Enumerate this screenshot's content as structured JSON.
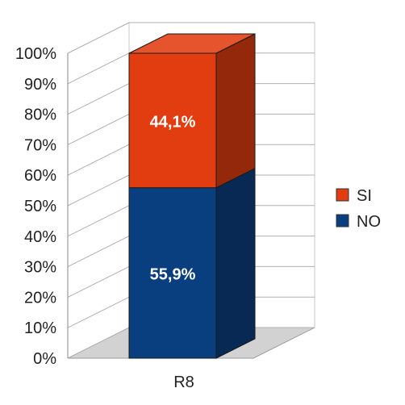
{
  "chart_data": {
    "type": "bar",
    "stacked": true,
    "three_d": true,
    "categories": [
      "R8"
    ],
    "series": [
      {
        "name": "NO",
        "values": [
          55.9
        ],
        "color": "#0a3f7f",
        "label": "55,9%"
      },
      {
        "name": "SI",
        "values": [
          44.1
        ],
        "color": "#e23d10",
        "label": "44,1%"
      }
    ],
    "y_ticks": [
      "0%",
      "10%",
      "20%",
      "30%",
      "40%",
      "50%",
      "60%",
      "70%",
      "80%",
      "90%",
      "100%"
    ],
    "ylim": [
      0,
      100
    ],
    "grid": true,
    "legend": {
      "position": "right",
      "items": [
        "SI",
        "NO"
      ]
    },
    "title": "",
    "xlabel": "",
    "ylabel": ""
  }
}
